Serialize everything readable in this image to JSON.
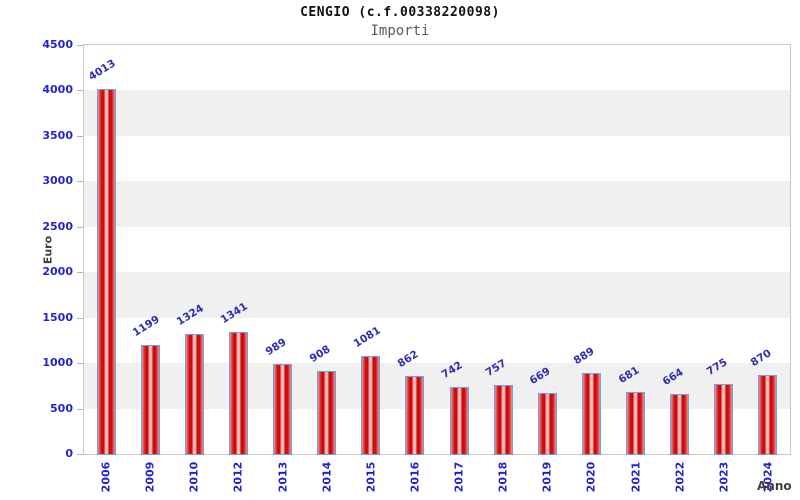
{
  "header": {
    "title": "CENGIO (c.f.00338220098)",
    "subtitle": "Importi"
  },
  "chart_data": {
    "type": "bar",
    "title": "CENGIO (c.f.00338220098)",
    "subtitle": "Importi",
    "xlabel": "Anno",
    "ylabel": "Euro",
    "categories": [
      "2006",
      "2009",
      "2010",
      "2012",
      "2013",
      "2014",
      "2015",
      "2016",
      "2017",
      "2018",
      "2019",
      "2020",
      "2021",
      "2022",
      "2023",
      "2024"
    ],
    "values": [
      4013,
      1199,
      1324,
      1341,
      989,
      908,
      1081,
      862,
      742,
      757,
      669,
      889,
      681,
      664,
      775,
      870
    ],
    "bar_labels": [
      "4013",
      "1199",
      "1324",
      "1341",
      "989",
      "908",
      "1081",
      "862",
      "742",
      "757",
      "669",
      "889",
      "681",
      "664",
      "775",
      "870"
    ],
    "ylim": [
      0,
      4500
    ],
    "yticks": [
      0,
      500,
      1000,
      1500,
      2000,
      2500,
      3000,
      3500,
      4000,
      4500
    ],
    "grid": "alternating-horizontal-bands",
    "legend_position": "none"
  },
  "colors": {
    "axis_label_blue": "#2323cd",
    "value_label_blue": "#2d2db3",
    "band_gray": "#f0f0f0",
    "band_white": "#ffffff",
    "plot_border": "#c9c9c9",
    "tick_mark": "#b3b3b3",
    "bar_dark_red": "#c70c0c",
    "bar_light_pink": "#ffc6c6",
    "bar_edge_pink": "#ef9191",
    "bar_border_blue": "#6fa3e0",
    "title_color": "#111111",
    "subtitle_color": "#5a5a5a",
    "axis_title_color": "#3f3f3f"
  }
}
